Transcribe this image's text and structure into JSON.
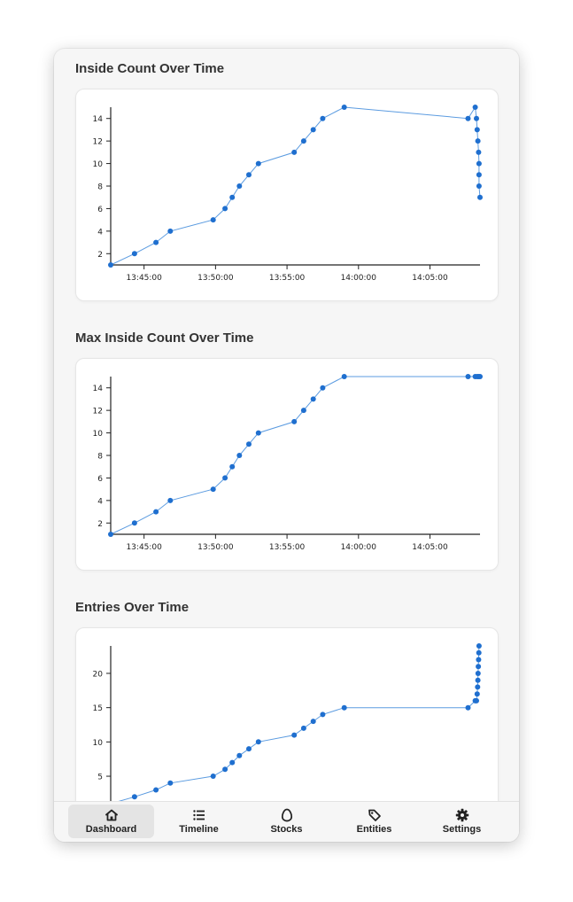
{
  "sections": [
    {
      "title": "Inside Count Over Time"
    },
    {
      "title": "Max Inside Count Over Time"
    },
    {
      "title": "Entries Over Time"
    }
  ],
  "nav": {
    "items": [
      {
        "label": "Dashboard",
        "icon": "home-icon",
        "active": true
      },
      {
        "label": "Timeline",
        "icon": "list-icon",
        "active": false
      },
      {
        "label": "Stocks",
        "icon": "egg-icon",
        "active": false
      },
      {
        "label": "Entities",
        "icon": "tag-icon",
        "active": false
      },
      {
        "label": "Settings",
        "icon": "gear-icon",
        "active": false
      }
    ]
  },
  "colors": {
    "series": "#1f6fcf",
    "line": "#5b9be0",
    "axis": "#222222"
  },
  "chart_data": [
    {
      "type": "line",
      "title": "Inside Count Over Time",
      "x_domain": [
        "13:42:40",
        "14:08:30"
      ],
      "ylim": [
        1,
        15
      ],
      "x_ticks": [
        "13:45:00",
        "13:50:00",
        "13:55:00",
        "14:00:00",
        "14:05:00"
      ],
      "y_ticks": [
        2,
        4,
        6,
        8,
        10,
        12,
        14
      ],
      "grid": false,
      "series": [
        {
          "points": [
            {
              "x": "13:42:40",
              "y": 1
            },
            {
              "x": "13:44:20",
              "y": 2
            },
            {
              "x": "13:45:50",
              "y": 3
            },
            {
              "x": "13:46:50",
              "y": 4
            },
            {
              "x": "13:49:50",
              "y": 5
            },
            {
              "x": "13:50:40",
              "y": 6
            },
            {
              "x": "13:51:10",
              "y": 7
            },
            {
              "x": "13:51:40",
              "y": 8
            },
            {
              "x": "13:52:20",
              "y": 9
            },
            {
              "x": "13:53:00",
              "y": 10
            },
            {
              "x": "13:55:30",
              "y": 11
            },
            {
              "x": "13:56:10",
              "y": 12
            },
            {
              "x": "13:56:50",
              "y": 13
            },
            {
              "x": "13:57:30",
              "y": 14
            },
            {
              "x": "13:59:00",
              "y": 15
            },
            {
              "x": "14:07:40",
              "y": 14
            },
            {
              "x": "14:08:10",
              "y": 15
            },
            {
              "x": "14:08:15",
              "y": 14
            },
            {
              "x": "14:08:18",
              "y": 13
            },
            {
              "x": "14:08:21",
              "y": 12
            },
            {
              "x": "14:08:24",
              "y": 11
            },
            {
              "x": "14:08:26",
              "y": 10
            },
            {
              "x": "14:08:26",
              "y": 9
            },
            {
              "x": "14:08:26",
              "y": 8
            },
            {
              "x": "14:08:30",
              "y": 7
            }
          ]
        }
      ]
    },
    {
      "type": "line",
      "title": "Max Inside Count Over Time",
      "x_domain": [
        "13:42:40",
        "14:08:30"
      ],
      "ylim": [
        1,
        15
      ],
      "x_ticks": [
        "13:45:00",
        "13:50:00",
        "13:55:00",
        "14:00:00",
        "14:05:00"
      ],
      "y_ticks": [
        2,
        4,
        6,
        8,
        10,
        12,
        14
      ],
      "grid": false,
      "series": [
        {
          "points": [
            {
              "x": "13:42:40",
              "y": 1
            },
            {
              "x": "13:44:20",
              "y": 2
            },
            {
              "x": "13:45:50",
              "y": 3
            },
            {
              "x": "13:46:50",
              "y": 4
            },
            {
              "x": "13:49:50",
              "y": 5
            },
            {
              "x": "13:50:40",
              "y": 6
            },
            {
              "x": "13:51:10",
              "y": 7
            },
            {
              "x": "13:51:40",
              "y": 8
            },
            {
              "x": "13:52:20",
              "y": 9
            },
            {
              "x": "13:53:00",
              "y": 10
            },
            {
              "x": "13:55:30",
              "y": 11
            },
            {
              "x": "13:56:10",
              "y": 12
            },
            {
              "x": "13:56:50",
              "y": 13
            },
            {
              "x": "13:57:30",
              "y": 14
            },
            {
              "x": "13:59:00",
              "y": 15
            },
            {
              "x": "14:07:40",
              "y": 15
            },
            {
              "x": "14:08:10",
              "y": 15
            },
            {
              "x": "14:08:18",
              "y": 15
            },
            {
              "x": "14:08:24",
              "y": 15
            },
            {
              "x": "14:08:30",
              "y": 15
            }
          ]
        }
      ]
    },
    {
      "type": "line",
      "title": "Entries Over Time",
      "x_domain": [
        "13:42:40",
        "14:08:30"
      ],
      "ylim": [
        1,
        24
      ],
      "y_ticks": [
        5,
        10,
        15,
        20
      ],
      "grid": false,
      "series": [
        {
          "points": [
            {
              "x": "13:42:40",
              "y": 1
            },
            {
              "x": "13:44:20",
              "y": 2
            },
            {
              "x": "13:45:50",
              "y": 3
            },
            {
              "x": "13:46:50",
              "y": 4
            },
            {
              "x": "13:49:50",
              "y": 5
            },
            {
              "x": "13:50:40",
              "y": 6
            },
            {
              "x": "13:51:10",
              "y": 7
            },
            {
              "x": "13:51:40",
              "y": 8
            },
            {
              "x": "13:52:20",
              "y": 9
            },
            {
              "x": "13:53:00",
              "y": 10
            },
            {
              "x": "13:55:30",
              "y": 11
            },
            {
              "x": "13:56:10",
              "y": 12
            },
            {
              "x": "13:56:50",
              "y": 13
            },
            {
              "x": "13:57:30",
              "y": 14
            },
            {
              "x": "13:59:00",
              "y": 15
            },
            {
              "x": "14:07:40",
              "y": 15
            },
            {
              "x": "14:08:10",
              "y": 16
            },
            {
              "x": "14:08:15",
              "y": 16
            },
            {
              "x": "14:08:18",
              "y": 17
            },
            {
              "x": "14:08:20",
              "y": 18
            },
            {
              "x": "14:08:21",
              "y": 19
            },
            {
              "x": "14:08:22",
              "y": 20
            },
            {
              "x": "14:08:23",
              "y": 21
            },
            {
              "x": "14:08:24",
              "y": 22
            },
            {
              "x": "14:08:25",
              "y": 23
            },
            {
              "x": "14:08:26",
              "y": 24
            }
          ]
        }
      ]
    }
  ]
}
